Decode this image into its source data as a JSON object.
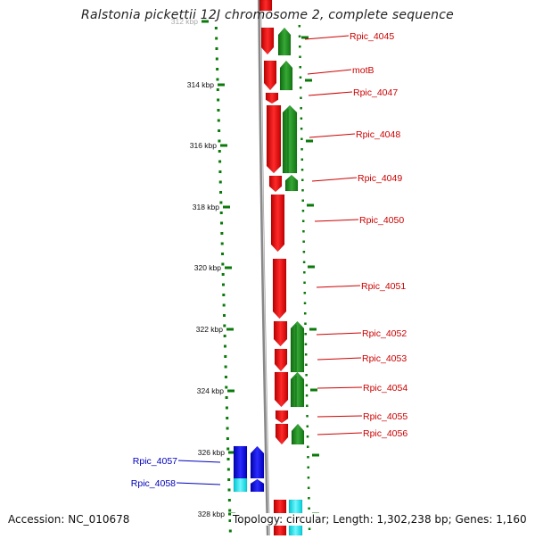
{
  "title": "Ralstonia pickettii 12J chromosome 2, complete sequence",
  "footer": {
    "accession": "Accession: NC_010678",
    "summary": "Topology: circular; Length: 1,302,238 bp; Genes: 1,160"
  },
  "scale": {
    "unit": "kbp",
    "labels": [
      "312 kbp",
      "314 kbp",
      "316 kbp",
      "318 kbp",
      "320 kbp",
      "322 kbp",
      "324 kbp",
      "326 kbp",
      "328 kbp"
    ]
  },
  "colors": {
    "forward_gene": "#e00000",
    "reverse_gene": "#1a8a1a",
    "other_gene": "#0000dd",
    "other_feature": "#00e5ee",
    "backbone": "#888888",
    "tick": "#0a7a0a",
    "label_right": "#cc0000",
    "label_left": "#0000bb"
  },
  "genes": [
    {
      "name": "Rpic_4045",
      "side": "right"
    },
    {
      "name": "motB",
      "side": "right"
    },
    {
      "name": "Rpic_4047",
      "side": "right"
    },
    {
      "name": "Rpic_4048",
      "side": "right"
    },
    {
      "name": "Rpic_4049",
      "side": "right"
    },
    {
      "name": "Rpic_4050",
      "side": "right"
    },
    {
      "name": "Rpic_4051",
      "side": "right"
    },
    {
      "name": "Rpic_4052",
      "side": "right"
    },
    {
      "name": "Rpic_4053",
      "side": "right"
    },
    {
      "name": "Rpic_4054",
      "side": "right"
    },
    {
      "name": "Rpic_4055",
      "side": "right"
    },
    {
      "name": "Rpic_4056",
      "side": "right"
    },
    {
      "name": "Rpic_4057",
      "side": "left"
    },
    {
      "name": "Rpic_4058",
      "side": "left"
    }
  ]
}
